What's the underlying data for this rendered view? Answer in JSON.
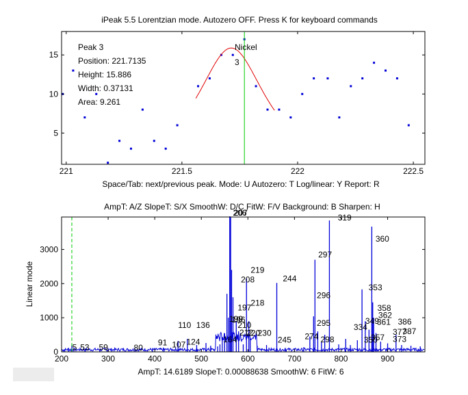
{
  "colors": {
    "points": "#0000d8",
    "fit": "#e00000",
    "marker": "#00cc00",
    "spectrum": "#0000d8",
    "axes": "#000000"
  },
  "top": {
    "title": "iPeak 5.5  Lorentzian mode.     Autozero OFF.    Press K for keyboard commands",
    "hint": "Space/Tab: next/previous peak.  Mode: U  Autozero: T   Log/linear: Y   Report: R",
    "info": [
      "Peak 3",
      "Position: 221.7135",
      "Height: 15.886",
      "Width: 0.37131",
      "Area: 9.261"
    ],
    "peak_label": "Nickel",
    "peak_number": "3"
  },
  "bottom": {
    "title": "AmpT: A/Z   SlopeT: S/X    SmoothW: D/C    FitW: F/V    Background: B    Sharpen: H",
    "footer": "AmpT: 14.6189      SlopeT: 0.00088638     SmoothW: 6    FitW: 6",
    "ylabel": "Linear mode"
  },
  "chart_data": [
    {
      "type": "scatter",
      "xlim": [
        220.98,
        222.55
      ],
      "ylim": [
        1,
        18
      ],
      "xticks": [
        221,
        221.5,
        222,
        222.5
      ],
      "xticklabels": [
        "221",
        "221.5",
        "222",
        "222.5"
      ],
      "yticks": [
        5,
        10,
        15
      ],
      "grid": false,
      "points": [
        [
          220.98,
          10
        ],
        [
          221.03,
          13
        ],
        [
          221.08,
          7
        ],
        [
          221.13,
          10
        ],
        [
          221.18,
          1.2
        ],
        [
          221.23,
          4
        ],
        [
          221.28,
          3
        ],
        [
          221.33,
          8
        ],
        [
          221.38,
          4
        ],
        [
          221.43,
          3
        ],
        [
          221.48,
          6
        ],
        [
          221.57,
          11
        ],
        [
          221.62,
          12
        ],
        [
          221.67,
          15
        ],
        [
          221.72,
          15
        ],
        [
          221.77,
          17
        ],
        [
          221.82,
          11
        ],
        [
          221.87,
          8
        ],
        [
          221.92,
          8
        ],
        [
          221.97,
          7
        ],
        [
          222.02,
          10
        ],
        [
          222.07,
          12
        ],
        [
          222.13,
          12
        ],
        [
          222.18,
          7
        ],
        [
          222.23,
          11
        ],
        [
          222.28,
          12
        ],
        [
          222.33,
          14
        ],
        [
          222.38,
          13
        ],
        [
          222.43,
          12
        ],
        [
          222.48,
          6
        ]
      ],
      "fit": {
        "center": 221.7135,
        "height": 15.886,
        "width": 0.37131,
        "x_range": [
          221.56,
          221.9
        ]
      },
      "marker_x": 221.77
    },
    {
      "type": "line",
      "xlim": [
        200,
        980
      ],
      "ylim": [
        0,
        3950
      ],
      "xticks": [
        200,
        300,
        400,
        500,
        600,
        700,
        800,
        900
      ],
      "yticks": [
        0,
        1000,
        2000,
        3000
      ],
      "grid": false,
      "marker_x": 222,
      "spikes": [
        [
          205,
          60
        ],
        [
          215,
          120
        ],
        [
          222,
          200
        ],
        [
          250,
          80
        ],
        [
          282,
          60
        ],
        [
          300,
          110
        ],
        [
          395,
          90
        ],
        [
          420,
          110
        ],
        [
          450,
          320
        ],
        [
          470,
          380
        ],
        [
          490,
          200
        ],
        [
          510,
          260
        ],
        [
          520,
          180
        ],
        [
          535,
          160
        ],
        [
          540,
          220
        ],
        [
          545,
          380
        ],
        [
          550,
          550
        ],
        [
          555,
          1700
        ],
        [
          558,
          1000
        ],
        [
          561,
          4150
        ],
        [
          563,
          3950
        ],
        [
          565,
          2400
        ],
        [
          568,
          1600
        ],
        [
          575,
          900
        ],
        [
          580,
          600
        ],
        [
          590,
          220
        ],
        [
          597,
          2150
        ],
        [
          602,
          900
        ],
        [
          605,
          400
        ],
        [
          620,
          180
        ],
        [
          640,
          200
        ],
        [
          662,
          2020
        ],
        [
          680,
          120
        ],
        [
          700,
          100
        ],
        [
          720,
          140
        ],
        [
          733,
          450
        ],
        [
          741,
          1040
        ],
        [
          744,
          2700
        ],
        [
          750,
          600
        ],
        [
          758,
          300
        ],
        [
          765,
          500
        ],
        [
          775,
          3850
        ],
        [
          795,
          220
        ],
        [
          810,
          380
        ],
        [
          820,
          200
        ],
        [
          835,
          340
        ],
        [
          845,
          1830
        ],
        [
          852,
          900
        ],
        [
          860,
          650
        ],
        [
          866,
          3670
        ],
        [
          868,
          1450
        ],
        [
          870,
          1000
        ],
        [
          875,
          550
        ],
        [
          885,
          300
        ],
        [
          900,
          250
        ],
        [
          918,
          500
        ],
        [
          930,
          200
        ],
        [
          950,
          180
        ],
        [
          970,
          160
        ]
      ],
      "peak_labels": [
        {
          "x": 223,
          "y": 30,
          "text": "5"
        },
        {
          "x": 240,
          "y": 30,
          "text": "53"
        },
        {
          "x": 280,
          "y": 30,
          "text": "59"
        },
        {
          "x": 355,
          "y": 20,
          "text": "80"
        },
        {
          "x": 407,
          "y": 170,
          "text": "91"
        },
        {
          "x": 437,
          "y": 110,
          "text": "107"
        },
        {
          "x": 468,
          "y": 190,
          "text": "124"
        },
        {
          "x": 450,
          "y": 680,
          "text": "110"
        },
        {
          "x": 489,
          "y": 680,
          "text": "136"
        },
        {
          "x": 547,
          "y": 260,
          "text": "164"
        },
        {
          "x": 560,
          "y": 860,
          "text": "199"
        },
        {
          "x": 565,
          "y": 840,
          "text": "196"
        },
        {
          "x": 578,
          "y": 680,
          "text": "210"
        },
        {
          "x": 582,
          "y": 460,
          "text": "212"
        },
        {
          "x": 578,
          "y": 1190,
          "text": "197"
        },
        {
          "x": 585,
          "y": 2020,
          "text": "208"
        },
        {
          "x": 606,
          "y": 2300,
          "text": "219"
        },
        {
          "x": 606,
          "y": 1330,
          "text": "218"
        },
        {
          "x": 597,
          "y": 450,
          "text": "220"
        },
        {
          "x": 621,
          "y": 450,
          "text": "230"
        },
        {
          "x": 664,
          "y": 250,
          "text": "245"
        },
        {
          "x": 675,
          "y": 2050,
          "text": "244"
        },
        {
          "x": 722,
          "y": 350,
          "text": "274"
        },
        {
          "x": 748,
          "y": 740,
          "text": "295"
        },
        {
          "x": 748,
          "y": 1550,
          "text": "296"
        },
        {
          "x": 751,
          "y": 2750,
          "text": "297"
        },
        {
          "x": 756,
          "y": 260,
          "text": "298"
        },
        {
          "x": 793,
          "y": 3830,
          "text": "319"
        },
        {
          "x": 827,
          "y": 620,
          "text": "334"
        },
        {
          "x": 852,
          "y": 800,
          "text": "349"
        },
        {
          "x": 849,
          "y": 250,
          "text": "350"
        },
        {
          "x": 859,
          "y": 1780,
          "text": "353"
        },
        {
          "x": 874,
          "y": 3210,
          "text": "360"
        },
        {
          "x": 878,
          "y": 1180,
          "text": "358"
        },
        {
          "x": 880,
          "y": 970,
          "text": "362"
        },
        {
          "x": 877,
          "y": 770,
          "text": "361"
        },
        {
          "x": 864,
          "y": 320,
          "text": "357"
        },
        {
          "x": 922,
          "y": 780,
          "text": "386"
        },
        {
          "x": 911,
          "y": 480,
          "text": "377"
        },
        {
          "x": 932,
          "y": 500,
          "text": "387"
        },
        {
          "x": 911,
          "y": 270,
          "text": "373"
        },
        {
          "x": 568,
          "y": 4330,
          "text": "206"
        },
        {
          "x": 570,
          "y": 4030,
          "text": "207"
        }
      ]
    }
  ]
}
